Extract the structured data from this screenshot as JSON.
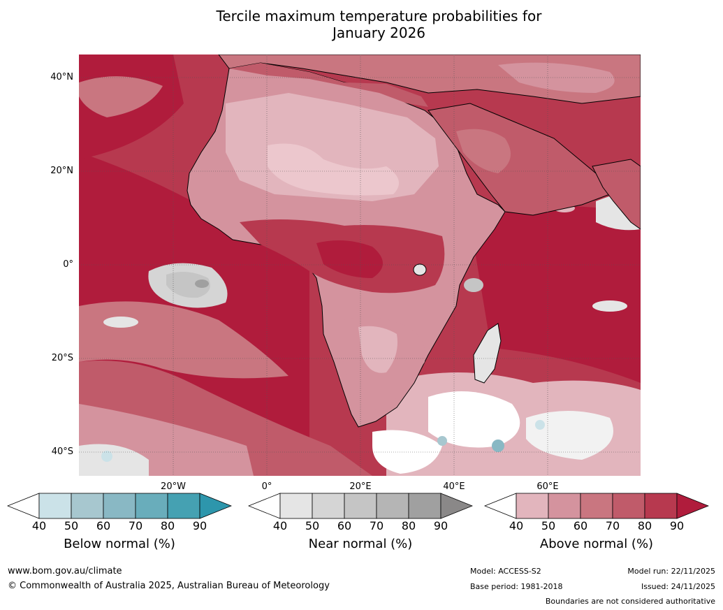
{
  "title": {
    "line1": "Tercile maximum temperature probabilities for",
    "line2": "January 2026"
  },
  "map": {
    "lat_labels": [
      "40°N",
      "20°N",
      "0°",
      "20°S",
      "40°S"
    ],
    "lon_labels": [
      "20°W",
      "0°",
      "20°E",
      "40°E",
      "60°E"
    ],
    "region": "Africa"
  },
  "colorbars": [
    {
      "name": "below",
      "label": "Below normal (%)",
      "ticks": [
        "40",
        "50",
        "60",
        "70",
        "80",
        "90"
      ],
      "colors": [
        "#ffffff",
        "#cbe2e8",
        "#a7c7cf",
        "#89b8c4",
        "#69adbb",
        "#45a1b2",
        "#2d96ac"
      ]
    },
    {
      "name": "near",
      "label": "Near normal (%)",
      "ticks": [
        "40",
        "50",
        "60",
        "70",
        "80",
        "90"
      ],
      "colors": [
        "#ffffff",
        "#e5e5e5",
        "#d5d5d5",
        "#c5c5c5",
        "#b5b5b5",
        "#a0a0a0",
        "#8a8888"
      ]
    },
    {
      "name": "above",
      "label": "Above normal (%)",
      "ticks": [
        "40",
        "50",
        "60",
        "70",
        "80",
        "90"
      ],
      "colors": [
        "#ffffff",
        "#e2b5bd",
        "#d4939e",
        "#c97680",
        "#c05b6a",
        "#b7394f",
        "#b01c3c"
      ]
    }
  ],
  "footer": {
    "website": "www.bom.gov.au/climate",
    "copyright": "© Commonwealth of Australia 2025, Australian Bureau of Meteorology",
    "model": "Model: ACCESS-S2",
    "base_period": "Base period: 1981-2018",
    "model_run": "Model run: 22/11/2025",
    "issued": "Issued: 24/11/2025",
    "disclaimer": "Boundaries are not considered authoritative"
  }
}
